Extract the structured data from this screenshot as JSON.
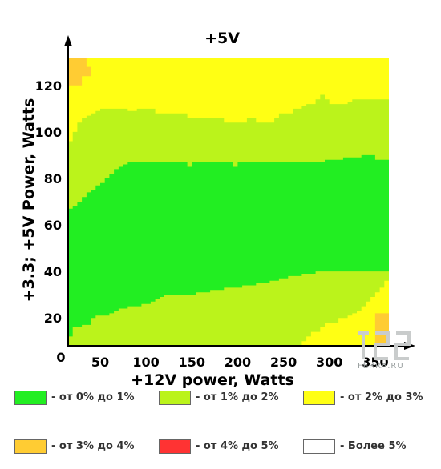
{
  "chart_data": {
    "type": "heatmap",
    "title": "+5V",
    "xlabel": "+12V power, Watts",
    "ylabel": "+3.3; +5V Power, Watts",
    "xlim": [
      15,
      365
    ],
    "ylim": [
      8,
      132
    ],
    "x_ticks": [
      50,
      100,
      150,
      200,
      250,
      300,
      350
    ],
    "y_ticks": [
      20,
      40,
      60,
      80,
      100,
      120
    ],
    "origin_label": "0",
    "colors": {
      "c0": "#22ee22",
      "c1": "#bbf31b",
      "c2": "#ffff14",
      "c3": "#ffcc33",
      "c4": "#ff3333",
      "c5": "#ffffff"
    },
    "band_boundaries": {
      "x": [
        15,
        20,
        25,
        30,
        35,
        40,
        45,
        50,
        55,
        60,
        65,
        70,
        75,
        80,
        85,
        90,
        95,
        100,
        105,
        110,
        115,
        120,
        125,
        130,
        135,
        140,
        145,
        150,
        155,
        160,
        165,
        170,
        175,
        180,
        185,
        190,
        195,
        200,
        205,
        210,
        215,
        220,
        225,
        230,
        235,
        240,
        245,
        250,
        255,
        260,
        265,
        270,
        275,
        280,
        285,
        290,
        295,
        300,
        305,
        310,
        315,
        320,
        325,
        330,
        335,
        340,
        345,
        350,
        355,
        360,
        365
      ],
      "yellow_low_top": [
        null,
        null,
        null,
        null,
        null,
        null,
        null,
        null,
        null,
        null,
        null,
        null,
        null,
        null,
        null,
        null,
        null,
        null,
        null,
        null,
        null,
        null,
        null,
        null,
        null,
        null,
        null,
        null,
        null,
        null,
        null,
        null,
        null,
        null,
        null,
        null,
        null,
        null,
        null,
        null,
        null,
        null,
        null,
        null,
        null,
        null,
        null,
        null,
        null,
        null,
        null,
        10,
        12,
        14,
        14,
        16,
        18,
        18,
        18,
        20,
        20,
        21,
        22,
        23,
        25,
        27,
        29,
        31,
        33,
        36,
        38
      ],
      "green_low_top": [
        12,
        16,
        16,
        17,
        17,
        20,
        21,
        21,
        21,
        22,
        23,
        24,
        24,
        25,
        25,
        25,
        26,
        26,
        27,
        28,
        29,
        30,
        30,
        30,
        30,
        30,
        30,
        30,
        31,
        31,
        31,
        32,
        32,
        32,
        33,
        33,
        33,
        33,
        34,
        34,
        34,
        35,
        35,
        35,
        36,
        36,
        37,
        37,
        38,
        38,
        38,
        39,
        39,
        39,
        40,
        40,
        40,
        40,
        40,
        40,
        40,
        40,
        40,
        40,
        40,
        40,
        40,
        40,
        40,
        40,
        40
      ],
      "green_high_top": [
        67,
        68,
        70,
        72,
        74,
        75,
        77,
        78,
        80,
        82,
        84,
        85,
        86,
        87,
        87,
        87,
        87,
        87,
        87,
        87,
        87,
        87,
        87,
        87,
        87,
        87,
        85,
        87,
        87,
        87,
        87,
        87,
        87,
        87,
        87,
        87,
        85,
        87,
        87,
        87,
        87,
        87,
        87,
        87,
        87,
        87,
        87,
        87,
        87,
        87,
        87,
        87,
        87,
        87,
        87,
        87,
        88,
        88,
        88,
        88,
        89,
        89,
        89,
        89,
        90,
        90,
        90,
        88,
        88,
        88,
        88
      ],
      "yellowgreen_high_top": [
        96,
        100,
        104,
        106,
        107,
        108,
        109,
        110,
        110,
        110,
        110,
        110,
        110,
        109,
        109,
        110,
        110,
        110,
        110,
        108,
        108,
        108,
        108,
        108,
        108,
        108,
        106,
        106,
        106,
        106,
        106,
        106,
        106,
        106,
        104,
        104,
        104,
        104,
        104,
        106,
        106,
        104,
        104,
        104,
        104,
        106,
        108,
        108,
        108,
        110,
        110,
        111,
        112,
        112,
        114,
        116,
        114,
        112,
        112,
        112,
        112,
        113,
        114,
        114,
        114,
        114,
        114,
        114,
        114,
        114,
        114
      ],
      "orange_corner": {
        "x_max": 40,
        "y_min": 120,
        "y_max": 132,
        "top_x_max": 35
      }
    }
  },
  "legend": [
    {
      "label": "- от 0% до 1%",
      "color": "#22ee22"
    },
    {
      "label": "- от 1% до 2%",
      "color": "#bbf31b"
    },
    {
      "label": "- от 2% до 3%",
      "color": "#ffff14"
    },
    {
      "label": "- от 3% до 4%",
      "color": "#ffcc33"
    },
    {
      "label": "- от 4% до 5%",
      "color": "#ff3333"
    },
    {
      "label": "- Более 5%",
      "color": "#ffffff"
    }
  ],
  "watermark": {
    "text": "FERRA.RU"
  }
}
